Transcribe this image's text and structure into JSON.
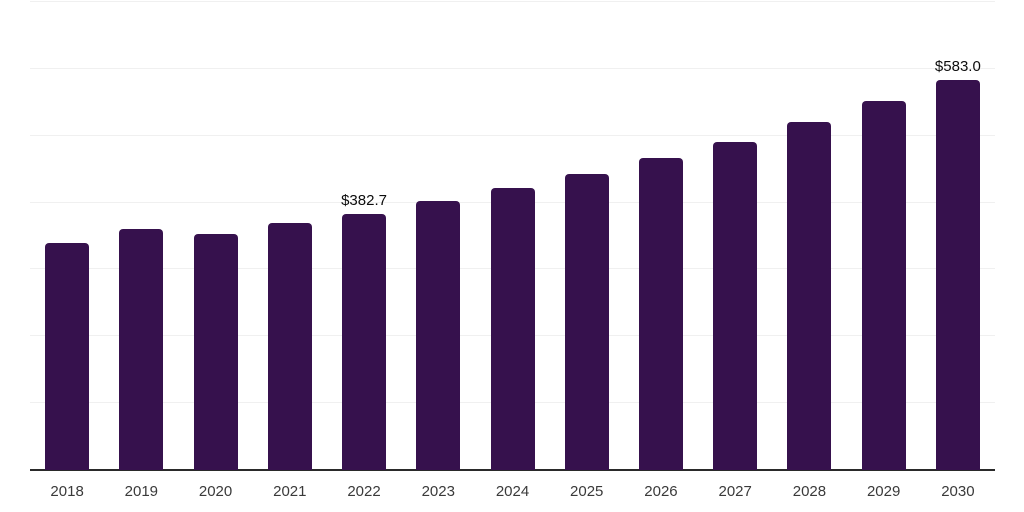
{
  "chart_data": {
    "type": "bar",
    "title": "",
    "xlabel": "",
    "ylabel": "",
    "categories": [
      "2018",
      "2019",
      "2020",
      "2021",
      "2022",
      "2023",
      "2024",
      "2025",
      "2026",
      "2027",
      "2028",
      "2029",
      "2030"
    ],
    "values": [
      340.0,
      360.2,
      352.8,
      369.0,
      382.7,
      402.5,
      422.5,
      443.0,
      467.0,
      490.5,
      520.0,
      551.5,
      583.0
    ],
    "data_labels": [
      {
        "category": "2022",
        "label": "$382.7"
      },
      {
        "category": "2030",
        "label": "$583.0"
      }
    ],
    "ylim": [
      0,
      700
    ],
    "gridline_step": 100,
    "grid": true,
    "legend": "none",
    "y_tick_labels_visible": false,
    "colors": {
      "bar": "#36114D",
      "grid": "#F0F0F0",
      "axis_line": "#2A2A2A",
      "value_label": "#0D0D0D",
      "tick_label": "#3A3A3A",
      "background": "#FFFFFF"
    }
  }
}
